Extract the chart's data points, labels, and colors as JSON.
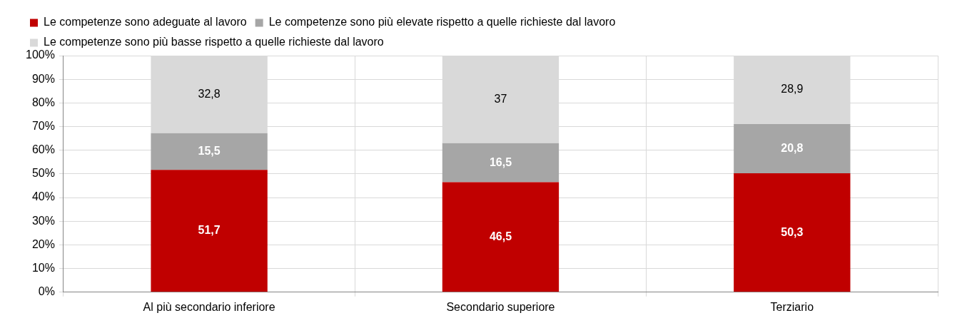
{
  "chart_data": {
    "type": "bar",
    "stacked": true,
    "categories": [
      "Al più secondario inferiore",
      "Secondario superiore",
      "Terziario"
    ],
    "series": [
      {
        "name": "Le competenze sono adeguate al lavoro",
        "color": "#c00000",
        "values": [
          51.7,
          46.5,
          50.3
        ],
        "value_labels": [
          "51,7",
          "46,5",
          "50,3"
        ]
      },
      {
        "name": "Le competenze sono più elevate rispetto a quelle richieste dal lavoro",
        "color": "#a6a6a6",
        "values": [
          15.5,
          16.5,
          20.8
        ],
        "value_labels": [
          "15,5",
          "16,5",
          "20,8"
        ]
      },
      {
        "name": "Le competenze sono più basse rispetto a quelle richieste dal lavoro",
        "color": "#d9d9d9",
        "values": [
          32.8,
          37,
          28.9
        ],
        "value_labels": [
          "32,8",
          "37",
          "28,9"
        ]
      }
    ],
    "ylim": [
      0,
      100
    ],
    "yticks": [
      {
        "value": 0,
        "label": "0%"
      },
      {
        "value": 10,
        "label": "10%"
      },
      {
        "value": 20,
        "label": "20%"
      },
      {
        "value": 30,
        "label": "30%"
      },
      {
        "value": 40,
        "label": "40%"
      },
      {
        "value": 50,
        "label": "50%"
      },
      {
        "value": 60,
        "label": "60%"
      },
      {
        "value": 70,
        "label": "70%"
      },
      {
        "value": 80,
        "label": "80%"
      },
      {
        "value": 90,
        "label": "90%"
      },
      {
        "value": 100,
        "label": "100%"
      }
    ],
    "grid": true,
    "legend": "top left"
  }
}
